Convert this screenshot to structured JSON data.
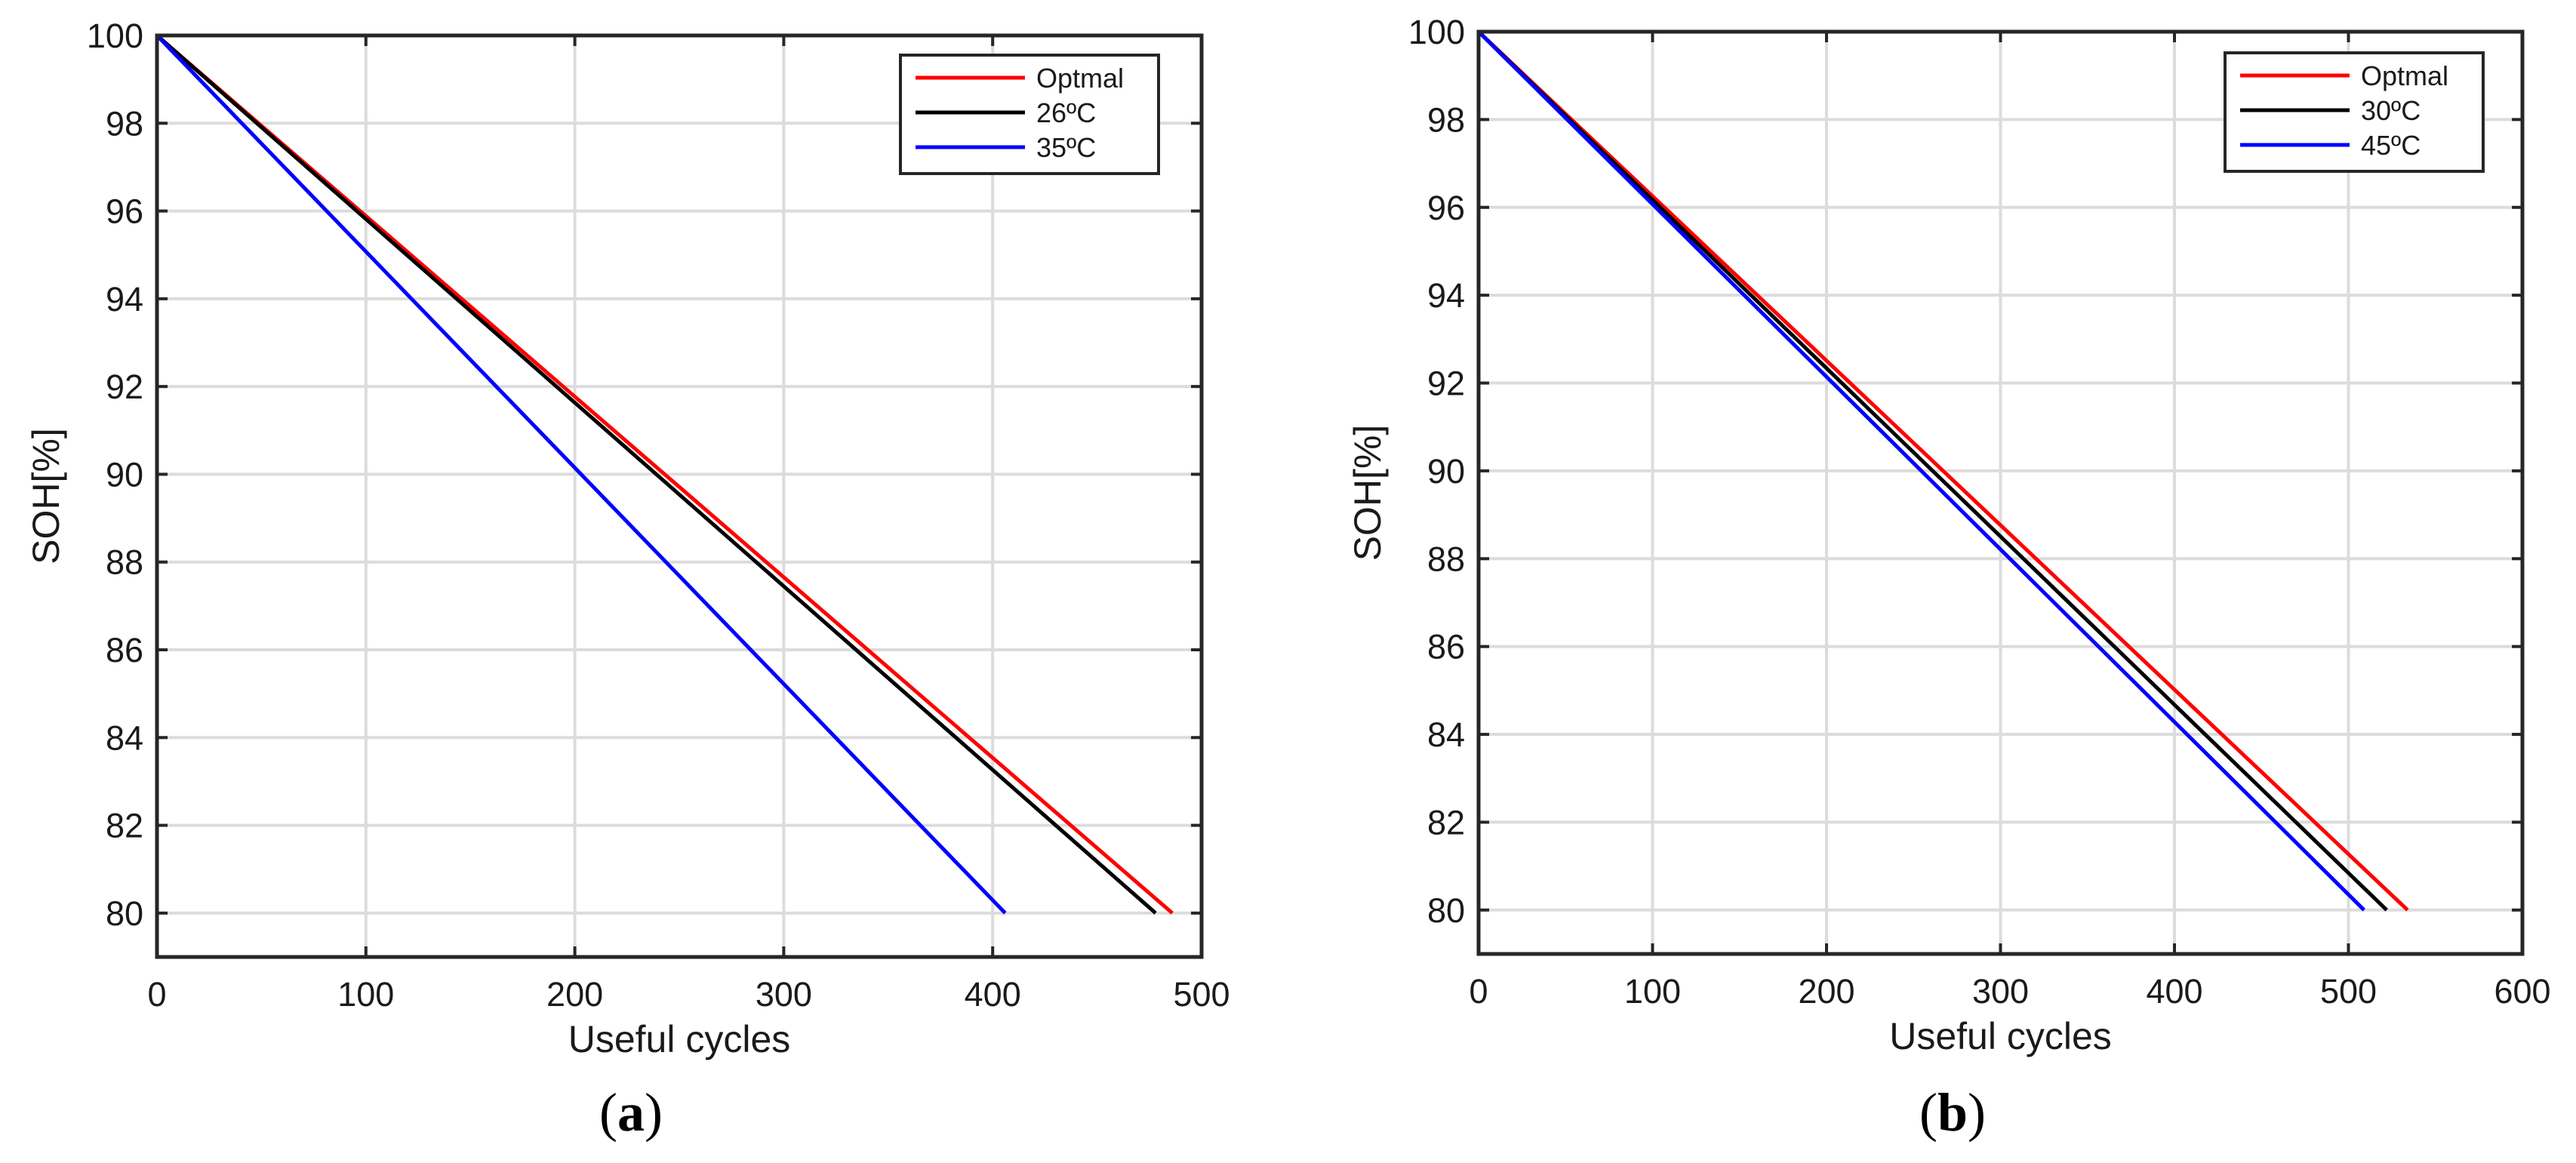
{
  "chart_data": [
    {
      "type": "line",
      "panel_label": "a",
      "caption_open": "(",
      "caption_close": ")",
      "xlabel": "Useful cycles",
      "ylabel": "SOH[%]",
      "xlim": [
        0,
        500
      ],
      "ylim": [
        79,
        100
      ],
      "xticks": [
        0,
        100,
        200,
        300,
        400,
        500
      ],
      "yticks": [
        80,
        82,
        84,
        86,
        88,
        90,
        92,
        94,
        96,
        98,
        100
      ],
      "grid": true,
      "legend_position": "top-right",
      "series": [
        {
          "name": "Optmal",
          "color": "#ff0000",
          "x": [
            0,
            486
          ],
          "y": [
            100,
            80
          ]
        },
        {
          "name": "26ºC",
          "color": "#000000",
          "x": [
            0,
            478
          ],
          "y": [
            100,
            80
          ]
        },
        {
          "name": "35ºC",
          "color": "#0000ff",
          "x": [
            0,
            406
          ],
          "y": [
            100,
            80
          ]
        }
      ]
    },
    {
      "type": "line",
      "panel_label": "b",
      "caption_open": "(",
      "caption_close": ")",
      "xlabel": "Useful cycles",
      "ylabel": "SOH[%]",
      "xlim": [
        0,
        600
      ],
      "ylim": [
        79,
        100
      ],
      "xticks": [
        0,
        100,
        200,
        300,
        400,
        500,
        600
      ],
      "yticks": [
        80,
        82,
        84,
        86,
        88,
        90,
        92,
        94,
        96,
        98,
        100
      ],
      "grid": true,
      "legend_position": "top-right",
      "series": [
        {
          "name": "Optmal",
          "color": "#ff0000",
          "x": [
            0,
            534
          ],
          "y": [
            100,
            80
          ]
        },
        {
          "name": "30ºC",
          "color": "#000000",
          "x": [
            0,
            522
          ],
          "y": [
            100,
            80
          ]
        },
        {
          "name": "45ºC",
          "color": "#0000ff",
          "x": [
            0,
            509
          ],
          "y": [
            100,
            80
          ]
        }
      ]
    }
  ]
}
